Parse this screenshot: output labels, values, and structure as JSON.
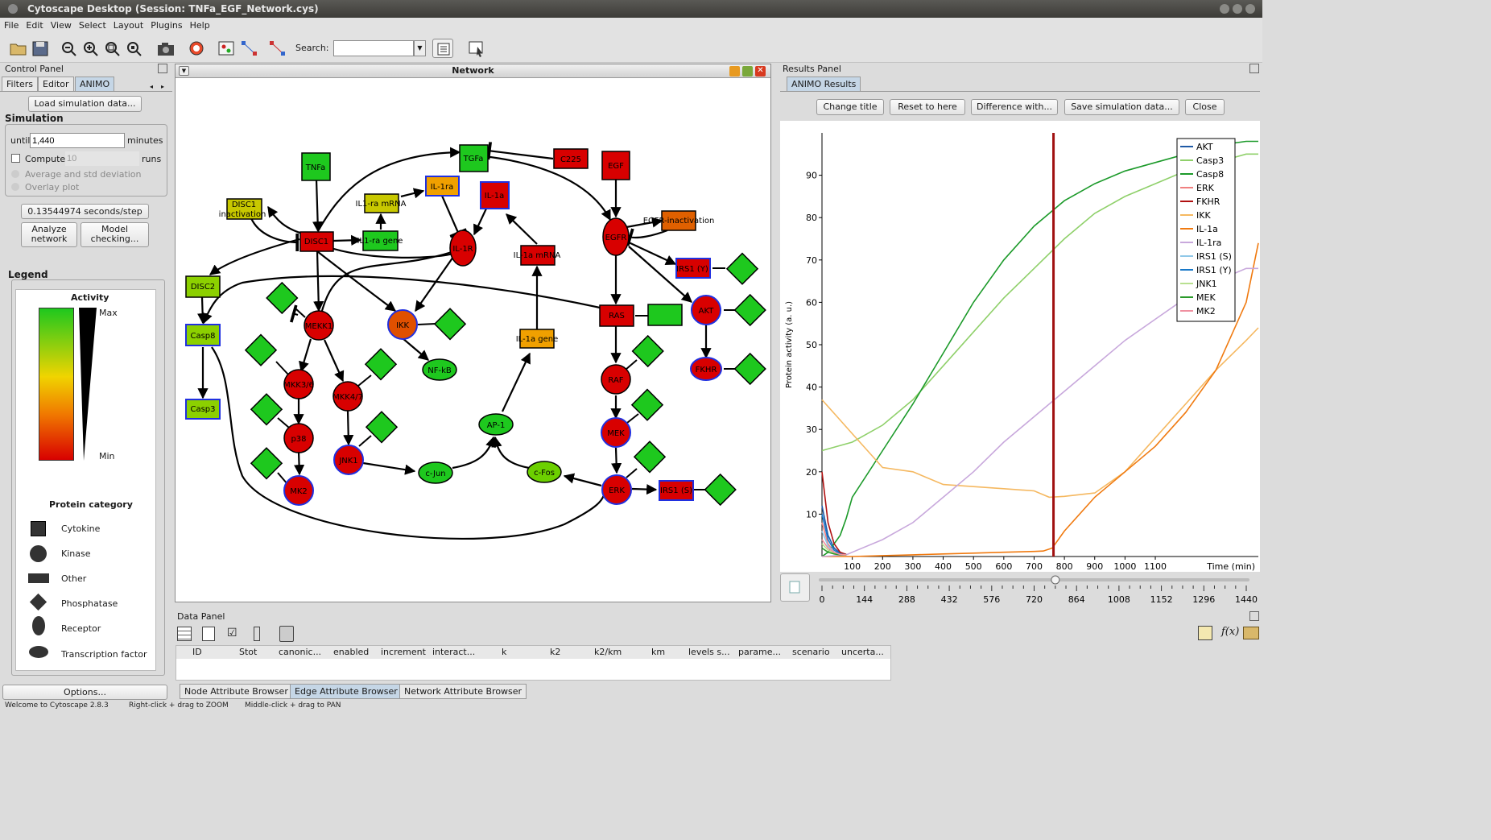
{
  "window": {
    "title": "Cytoscape Desktop (Session: TNFa_EGF_Network.cys)"
  },
  "menu": [
    "File",
    "Edit",
    "View",
    "Select",
    "Layout",
    "Plugins",
    "Help"
  ],
  "toolbar": {
    "search_label": "Search:",
    "search_value": ""
  },
  "control_panel": {
    "title": "Control Panel",
    "tabs": [
      "Filters",
      "Editor",
      "ANIMO"
    ],
    "load_button": "Load simulation data...",
    "simulation_heading": "Simulation",
    "until_label": "until",
    "until_value": "1,440",
    "minutes_label": "minutes",
    "compute_label": "Compute",
    "runs_value": "10",
    "runs_label": "runs",
    "avg_label": "Average and std deviation",
    "overlay_label": "Overlay plot",
    "seconds_step": "0.13544974 seconds/step",
    "analyze_button": "Analyze network",
    "model_button": "Model checking...",
    "legend_heading": "Legend",
    "activity_title": "Activity",
    "max_label": "Max",
    "min_label": "Min",
    "category_title": "Protein category",
    "categories": [
      "Cytokine",
      "Kinase",
      "Other",
      "Phosphatase",
      "Receptor",
      "Transcription factor"
    ],
    "options_button": "Options..."
  },
  "network": {
    "title": "Network"
  },
  "results_panel": {
    "title": "Results Panel",
    "tab": "ANIMO Results",
    "buttons": [
      "Change title",
      "Reset to here",
      "Difference with...",
      "Save simulation data...",
      "Close"
    ]
  },
  "data_panel": {
    "title": "Data Panel",
    "columns": [
      "ID",
      "Stot",
      "canonic...",
      "enabled",
      "increment",
      "interact...",
      "k",
      "k2",
      "k2/km",
      "km",
      "levels s...",
      "parame...",
      "scenario",
      "uncerta..."
    ],
    "tabs": [
      "Node Attribute Browser",
      "Edge Attribute Browser",
      "Network Attribute Browser"
    ]
  },
  "status": {
    "welcome": "Welcome to Cytoscape 2.8.3",
    "zoom_hint": "Right-click + drag to ZOOM",
    "pan_hint": "Middle-click + drag to PAN"
  },
  "slider": {
    "ticks": [
      "0",
      "144",
      "288",
      "432",
      "576",
      "720",
      "864",
      "1008",
      "1152",
      "1296",
      "1440"
    ],
    "value": 792
  },
  "chart_data": {
    "type": "line",
    "title": "",
    "xlabel": "Time (min)",
    "ylabel": "Protein activity (a. u.)",
    "xlim": [
      0,
      1440
    ],
    "ylim": [
      0,
      100
    ],
    "xticks": [
      100,
      200,
      300,
      400,
      500,
      600,
      700,
      800,
      900,
      1000,
      1100
    ],
    "yticks": [
      10,
      20,
      30,
      40,
      50,
      60,
      70,
      80,
      90
    ],
    "marker_x": 764,
    "legend_position": "top-right",
    "series": [
      {
        "name": "AKT",
        "color": "#1f5aa6",
        "x": [
          0,
          20,
          40,
          60,
          80
        ],
        "y": [
          12,
          5,
          2,
          0.8,
          0.5
        ]
      },
      {
        "name": "Casp3",
        "color": "#8fd06a",
        "x": [
          0,
          100,
          200,
          300,
          400,
          500,
          600,
          700,
          800,
          900,
          1000,
          1100,
          1200,
          1300,
          1400,
          1440
        ],
        "y": [
          25,
          27,
          31,
          37,
          45,
          53,
          61,
          68,
          75,
          81,
          85,
          88,
          91,
          93,
          95,
          95
        ]
      },
      {
        "name": "Casp8",
        "color": "#1c9a2a",
        "x": [
          0,
          20,
          40,
          60,
          80,
          100,
          200,
          300,
          400,
          500,
          600,
          700,
          800,
          900,
          1000,
          1100,
          1200,
          1300,
          1400,
          1440
        ],
        "y": [
          0,
          1,
          3,
          5,
          9,
          14,
          25,
          36,
          48,
          60,
          70,
          78,
          84,
          88,
          91,
          93,
          95,
          97,
          98,
          98
        ]
      },
      {
        "name": "ERK",
        "color": "#f08080",
        "x": [
          0,
          20,
          40,
          60,
          80
        ],
        "y": [
          8,
          3,
          1,
          0.5,
          0.4
        ]
      },
      {
        "name": "FKHR",
        "color": "#b01010",
        "x": [
          0,
          20,
          40,
          60,
          80
        ],
        "y": [
          20,
          8,
          3,
          1,
          0.5
        ]
      },
      {
        "name": "IKK",
        "color": "#f5b860",
        "x": [
          0,
          50,
          100,
          150,
          200,
          300,
          400,
          500,
          600,
          700,
          750,
          800,
          900,
          1000,
          1100,
          1200,
          1300,
          1400,
          1440
        ],
        "y": [
          37,
          33,
          29,
          25,
          21,
          20,
          17,
          16.5,
          16,
          15.5,
          14,
          14.2,
          15,
          20,
          28,
          36,
          44,
          51,
          54
        ]
      },
      {
        "name": "IL-1a",
        "color": "#f07a10",
        "x": [
          0,
          100,
          200,
          300,
          400,
          500,
          600,
          700,
          730,
          760,
          800,
          900,
          1000,
          1100,
          1200,
          1300,
          1400,
          1440
        ],
        "y": [
          0,
          0,
          0.2,
          0.4,
          0.6,
          0.8,
          1,
          1.2,
          1.3,
          2,
          6,
          14,
          20,
          26,
          34,
          44,
          60,
          74
        ]
      },
      {
        "name": "IL-1ra",
        "color": "#c8a8dc",
        "x": [
          0,
          80,
          100,
          200,
          300,
          400,
          500,
          600,
          700,
          800,
          900,
          1000,
          1100,
          1200,
          1300,
          1400,
          1440
        ],
        "y": [
          0,
          0.4,
          1,
          4,
          8,
          14,
          20,
          27,
          33,
          39,
          45,
          51,
          56,
          61,
          65,
          68,
          68
        ]
      },
      {
        "name": "IRS1 (S)",
        "color": "#90c8e8",
        "x": [
          0,
          20,
          40,
          60,
          80
        ],
        "y": [
          6,
          2.5,
          1,
          0.5,
          0.4
        ]
      },
      {
        "name": "IRS1 (Y)",
        "color": "#1878c8",
        "x": [
          0,
          20,
          40,
          60,
          80
        ],
        "y": [
          10,
          4,
          1.5,
          0.6,
          0.4
        ]
      },
      {
        "name": "JNK1",
        "color": "#b8e090",
        "x": [
          0,
          20,
          40,
          60,
          80
        ],
        "y": [
          3,
          1.5,
          0.8,
          0.5,
          0.4
        ]
      },
      {
        "name": "MEK",
        "color": "#2a9a2a",
        "x": [
          0,
          20,
          40,
          60,
          80
        ],
        "y": [
          2,
          1,
          0.6,
          0.4,
          0.4
        ]
      },
      {
        "name": "MK2",
        "color": "#f090a0",
        "x": [
          0,
          20,
          40,
          60,
          80
        ],
        "y": [
          4,
          2,
          1,
          0.5,
          0.4
        ]
      }
    ]
  }
}
